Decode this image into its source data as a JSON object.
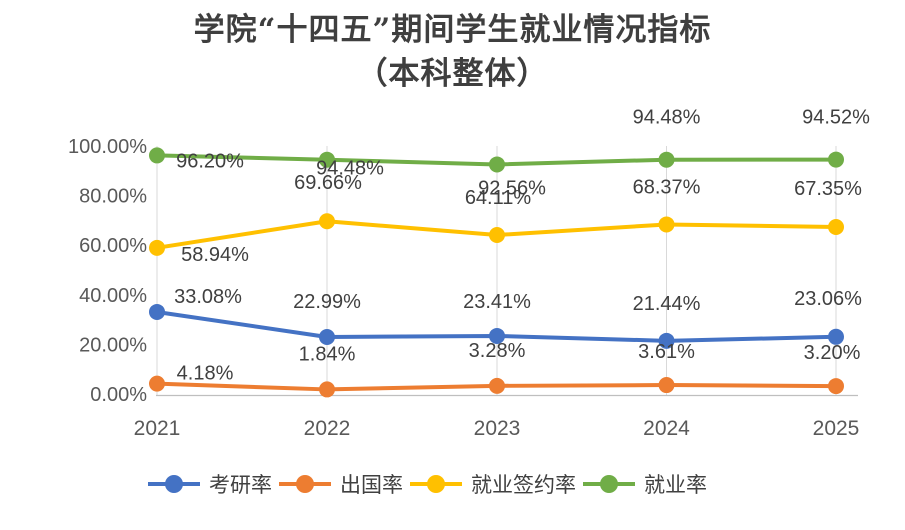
{
  "chart_data": {
    "type": "line",
    "title": "学院“十四五”期间学生就业情况指标",
    "subtitle": "（本科整体）",
    "categories": [
      "2021",
      "2022",
      "2023",
      "2024",
      "2025"
    ],
    "series": [
      {
        "name": "考研率",
        "color": "#4472C4",
        "values": [
          33.08,
          22.99,
          23.41,
          21.44,
          23.06
        ],
        "labels": [
          "33.08%",
          "22.99%",
          "23.41%",
          "21.44%",
          "23.06%"
        ]
      },
      {
        "name": "出国率",
        "color": "#ED7D31",
        "values": [
          4.18,
          1.84,
          3.28,
          3.61,
          3.2
        ],
        "labels": [
          "4.18%",
          "1.84%",
          "3.28%",
          "3.61%",
          "3.20%"
        ]
      },
      {
        "name": "就业签约率",
        "color": "#FFC000",
        "values": [
          58.94,
          69.66,
          64.11,
          68.37,
          67.35
        ],
        "labels": [
          "58.94%",
          "69.66%",
          "64.11%",
          "68.37%",
          "67.35%"
        ]
      },
      {
        "name": "就业率",
        "color": "#70AD47",
        "values": [
          96.2,
          94.48,
          92.56,
          94.48,
          94.52
        ],
        "labels": [
          "96.20%",
          "94.48%",
          "92.56%",
          "94.48%",
          "94.52%"
        ]
      }
    ],
    "y_axis": {
      "ticks": [
        "100.00%",
        "80.00%",
        "60.00%",
        "40.00%",
        "20.00%",
        "0.00%"
      ],
      "tick_values": [
        100,
        80,
        60,
        40,
        20,
        0
      ],
      "min": 0,
      "max": 100
    },
    "legend_position": "bottom",
    "gridlines": "vertical",
    "data_labels": true,
    "colors": {
      "grid": "#D9D9D9",
      "axis": "#BFBFBF",
      "tick_text": "#595959",
      "label_text": "#404040",
      "title_text": "#3F3F3F",
      "background": "#FFFFFF"
    }
  }
}
